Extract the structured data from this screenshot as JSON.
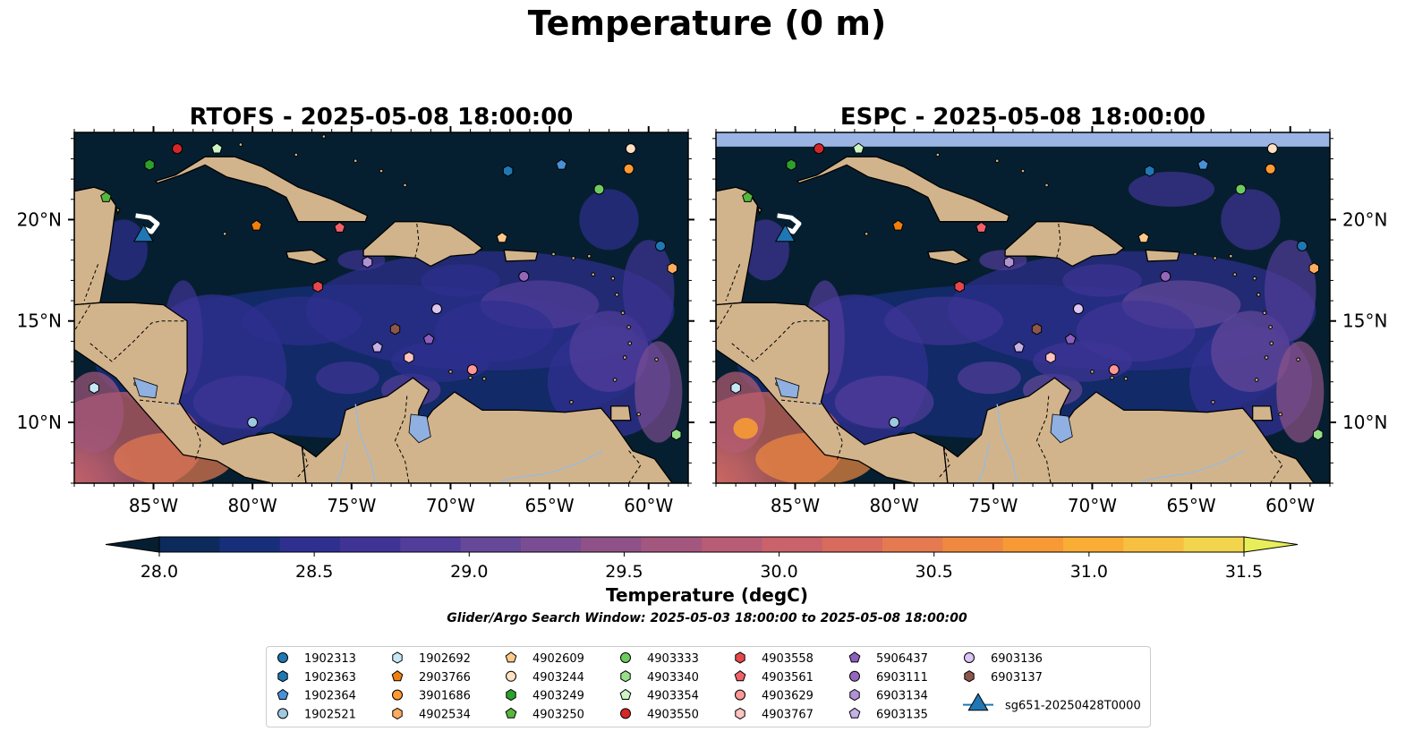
{
  "figure": {
    "title": "Temperature (0 m)",
    "search_window": "Glider/Argo Search Window: 2025-05-03 18:00:00 to 2025-05-08 18:00:00"
  },
  "chart_data": [
    {
      "type": "heatmap",
      "title": "RTOFS - 2025-05-08 18:00:00",
      "xlim": [
        -89.0,
        -58.0
      ],
      "ylim": [
        7.0,
        24.3
      ],
      "xticks": [
        -85,
        -80,
        -75,
        -70,
        -65,
        -60
      ],
      "xtick_labels": [
        "85°W",
        "80°W",
        "75°W",
        "70°W",
        "65°W",
        "60°W"
      ],
      "yticks": [
        10,
        15,
        20
      ],
      "ytick_labels": [
        "10°N",
        "15°N",
        "20°N"
      ],
      "ytick_side": "left"
    },
    {
      "type": "heatmap",
      "title": "ESPC - 2025-05-08 18:00:00",
      "xlim": [
        -89.0,
        -58.0
      ],
      "ylim": [
        7.0,
        24.3
      ],
      "xticks": [
        -85,
        -80,
        -75,
        -70,
        -65,
        -60
      ],
      "xtick_labels": [
        "85°W",
        "80°W",
        "75°W",
        "70°W",
        "65°W",
        "60°W"
      ],
      "yticks": [
        10,
        15,
        20
      ],
      "ytick_labels": [
        "10°N",
        "15°N",
        "20°N"
      ],
      "ytick_side": "right"
    }
  ],
  "colorbar": {
    "label": "Temperature (degC)",
    "range": [
      28.0,
      31.5
    ],
    "ticks": [
      28.0,
      28.5,
      29.0,
      29.5,
      30.0,
      30.5,
      31.0,
      31.5
    ],
    "tick_labels": [
      "28.0",
      "28.5",
      "29.0",
      "29.5",
      "30.0",
      "30.5",
      "31.0",
      "31.5"
    ],
    "colors": [
      "#061f30",
      "#0c2a5c",
      "#172f7a",
      "#2e2f8e",
      "#3f3496",
      "#523d9a",
      "#654898",
      "#7a4d92",
      "#8f5288",
      "#a4577e",
      "#b75c74",
      "#c9626a",
      "#d86b5e",
      "#e57a50",
      "#f0893f",
      "#f79a35",
      "#f9ad35",
      "#f7c040",
      "#f2d54c",
      "#e8ee5a"
    ]
  },
  "platforms": [
    {
      "id": "1902313",
      "marker": "circle",
      "color": "#1f77b4",
      "lon": -59.4,
      "lat": 18.7
    },
    {
      "id": "1902363",
      "marker": "hexagon",
      "color": "#1f77b4",
      "lon": -67.1,
      "lat": 22.4
    },
    {
      "id": "1902364",
      "marker": "pentagon",
      "color": "#4a90d9",
      "lon": -64.4,
      "lat": 22.7
    },
    {
      "id": "1902521",
      "marker": "circle",
      "color": "#9ecae1",
      "lon": -80.0,
      "lat": 10.0
    },
    {
      "id": "1902692",
      "marker": "hexagon",
      "color": "#c6e7f6",
      "lon": -88.0,
      "lat": 11.7
    },
    {
      "id": "2903766",
      "marker": "pentagon",
      "color": "#f07f0e",
      "lon": -79.8,
      "lat": 19.7
    },
    {
      "id": "3901686",
      "marker": "circle",
      "color": "#ff9a32",
      "lon": -61.0,
      "lat": 22.5
    },
    {
      "id": "4902534",
      "marker": "hexagon",
      "color": "#ffac5e",
      "lon": -58.8,
      "lat": 17.6
    },
    {
      "id": "4902609",
      "marker": "pentagon",
      "color": "#ffc98a",
      "lon": -67.4,
      "lat": 19.1
    },
    {
      "id": "4903244",
      "marker": "circle",
      "color": "#ffe0c2",
      "lon": -60.9,
      "lat": 23.5
    },
    {
      "id": "4903249",
      "marker": "hexagon",
      "color": "#2ca02c",
      "lon": -85.2,
      "lat": 22.7
    },
    {
      "id": "4903250",
      "marker": "pentagon",
      "color": "#55b83c",
      "lon": -87.4,
      "lat": 21.1
    },
    {
      "id": "4903333",
      "marker": "circle",
      "color": "#6ecb5f",
      "lon": -62.5,
      "lat": 21.5
    },
    {
      "id": "4903340",
      "marker": "hexagon",
      "color": "#98df8a",
      "lon": -58.6,
      "lat": 9.4
    },
    {
      "id": "4903354",
      "marker": "pentagon",
      "color": "#cdf5c4",
      "lon": -81.8,
      "lat": 23.5
    },
    {
      "id": "4903550",
      "marker": "circle",
      "color": "#d62728",
      "lon": -83.8,
      "lat": 23.5
    },
    {
      "id": "4903558",
      "marker": "hexagon",
      "color": "#e6474a",
      "lon": -76.7,
      "lat": 16.7
    },
    {
      "id": "4903561",
      "marker": "pentagon",
      "color": "#f0616a",
      "lon": -75.6,
      "lat": 19.6
    },
    {
      "id": "4903629",
      "marker": "circle",
      "color": "#ff9896",
      "lon": -68.9,
      "lat": 12.6
    },
    {
      "id": "4903767",
      "marker": "hexagon",
      "color": "#ffc4c2",
      "lon": -72.1,
      "lat": 13.2
    },
    {
      "id": "5906437",
      "marker": "pentagon",
      "color": "#8c5fbf",
      "lon": -71.1,
      "lat": 14.1
    },
    {
      "id": "6903111",
      "marker": "circle",
      "color": "#9467bd",
      "lon": -66.3,
      "lat": 17.2
    },
    {
      "id": "6903134",
      "marker": "hexagon",
      "color": "#b093d6",
      "lon": -74.2,
      "lat": 17.9
    },
    {
      "id": "6903135",
      "marker": "pentagon",
      "color": "#c5b0e8",
      "lon": -73.7,
      "lat": 13.7
    },
    {
      "id": "6903136",
      "marker": "circle",
      "color": "#dcc4f5",
      "lon": -70.7,
      "lat": 15.6
    },
    {
      "id": "6903137",
      "marker": "hexagon",
      "color": "#8c564b",
      "lon": -72.8,
      "lat": 14.6
    },
    {
      "id": "sg651-20250428T0000",
      "marker": "triangle",
      "color": "#1f77b4",
      "lon": -85.5,
      "lat": 19.2
    }
  ],
  "legend_columns": [
    [
      "1902313",
      "1902363",
      "1902364",
      "1902521"
    ],
    [
      "1902692",
      "2903766",
      "3901686",
      "4902534"
    ],
    [
      "4902609",
      "4903244",
      "4903249",
      "4903250"
    ],
    [
      "4903333",
      "4903340",
      "4903354",
      "4903550"
    ],
    [
      "4903558",
      "4903561",
      "4903629",
      "4903767"
    ],
    [
      "5906437",
      "6903111",
      "6903134",
      "6903135"
    ],
    [
      "6903136",
      "6903137",
      "sg651-20250428T0000"
    ]
  ],
  "colors": {
    "land": "#d2b48c",
    "lakes": "#8fb0e0",
    "rivers": "#9eb9d6",
    "deep_ocean": "#061f30",
    "no_data_band": "#9ab5e4"
  }
}
